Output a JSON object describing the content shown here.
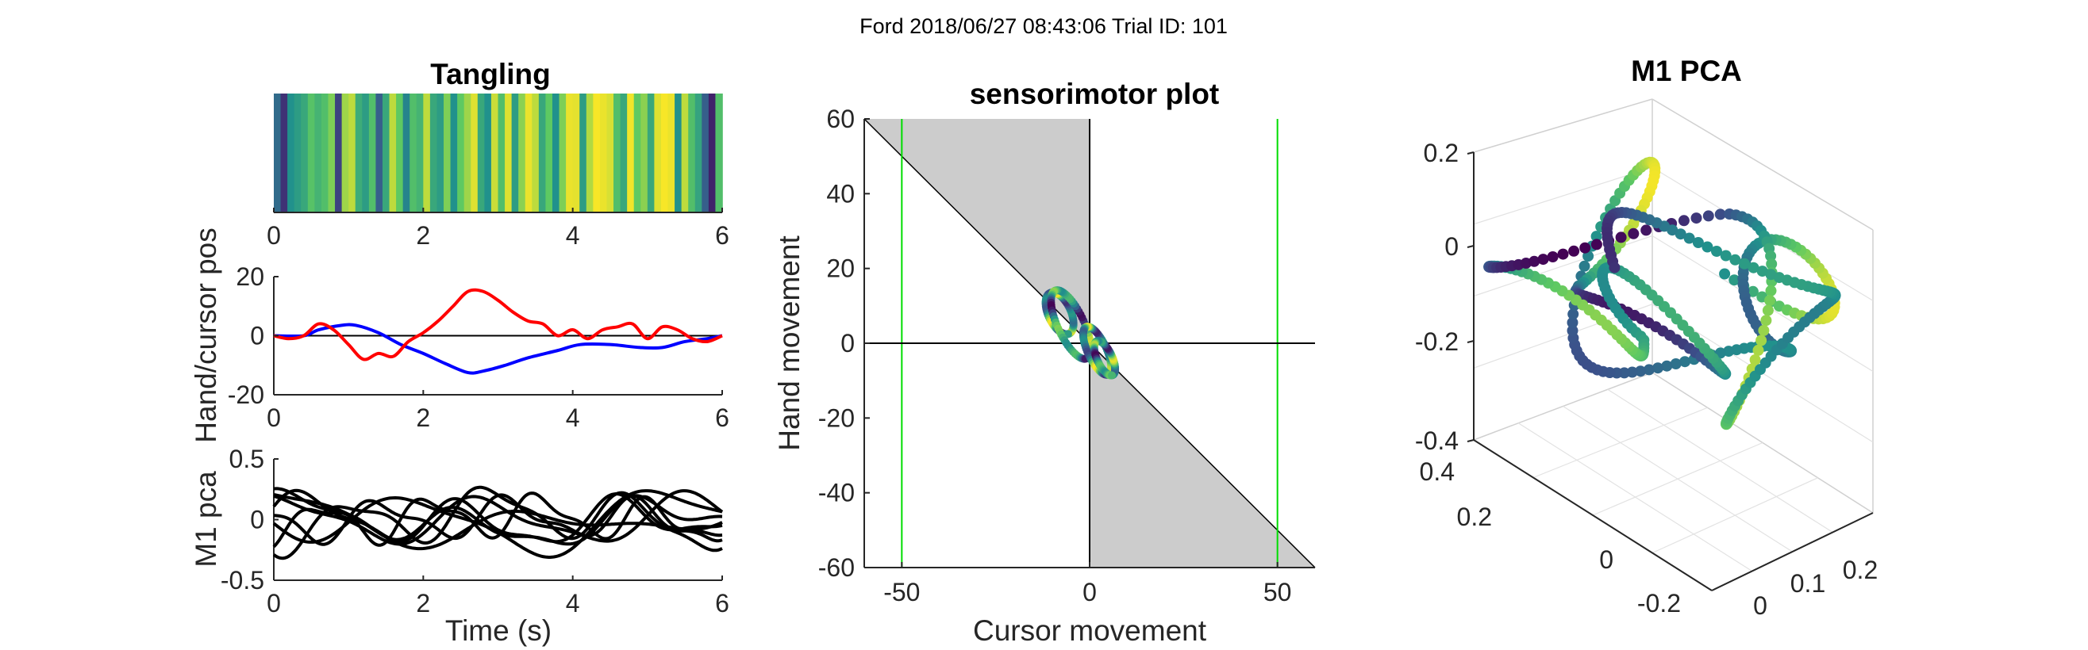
{
  "figure": {
    "suptitle": "Ford 2018/06/27 08:43:06 Trial ID: 101"
  },
  "colors": {
    "hand": "#0000ff",
    "cursor": "#ff0000",
    "pca": "#000000",
    "guide": "#00dd00",
    "shade": "#cccccc",
    "viridis": [
      "#440154",
      "#3b528b",
      "#21918c",
      "#5ec962",
      "#fde725"
    ]
  },
  "chart_data": [
    {
      "type": "heatmap",
      "title": "Tangling",
      "xlim": [
        0,
        6
      ],
      "xticks": [
        "0",
        "2",
        "4",
        "6"
      ],
      "values": [
        0.35,
        0.15,
        0.5,
        0.55,
        0.6,
        0.72,
        0.65,
        0.7,
        0.8,
        0.2,
        0.85,
        0.9,
        0.62,
        0.55,
        0.7,
        0.3,
        0.6,
        0.9,
        0.75,
        0.45,
        0.7,
        0.65,
        0.9,
        0.6,
        0.55,
        0.8,
        0.5,
        0.75,
        0.85,
        0.95,
        0.6,
        0.5,
        0.92,
        0.7,
        0.95,
        0.55,
        0.82,
        0.97,
        0.9,
        0.6,
        0.75,
        0.5,
        0.8,
        0.97,
        0.96,
        0.55,
        0.88,
        0.99,
        0.97,
        0.94,
        0.7,
        0.6,
        0.98,
        0.75,
        0.82,
        0.6,
        0.95,
        0.99,
        0.97,
        0.5,
        0.9,
        0.7,
        0.58,
        0.3,
        0.1,
        0.7
      ]
    },
    {
      "type": "line",
      "ylabel": "Hand/cursor pos",
      "xlim": [
        0,
        6
      ],
      "ylim": [
        -20,
        20
      ],
      "xticks": [
        "0",
        "2",
        "4",
        "6"
      ],
      "yticks": [
        "20",
        "0",
        "-20"
      ],
      "series": [
        {
          "color": "#0000ff",
          "x": [
            0,
            0.4,
            0.6,
            0.9,
            1.1,
            1.4,
            1.7,
            2.0,
            2.3,
            2.6,
            2.8,
            3.1,
            3.4,
            3.8,
            4.1,
            4.5,
            4.9,
            5.2,
            5.5,
            5.8,
            6.0
          ],
          "y": [
            0,
            0,
            2,
            3.5,
            3.5,
            1,
            -3,
            -6,
            -9.5,
            -12.5,
            -12,
            -10,
            -7.5,
            -5,
            -3,
            -3,
            -4,
            -4,
            -2,
            -1,
            0
          ]
        },
        {
          "color": "#ff0000",
          "x": [
            0,
            0.2,
            0.4,
            0.6,
            0.8,
            1.0,
            1.2,
            1.4,
            1.6,
            1.8,
            2.0,
            2.2,
            2.4,
            2.6,
            2.8,
            3.0,
            3.2,
            3.4,
            3.6,
            3.8,
            4.0,
            4.2,
            4.4,
            4.6,
            4.8,
            5.0,
            5.2,
            5.4,
            5.6,
            5.8,
            6.0
          ],
          "y": [
            0,
            -1,
            0,
            4,
            2,
            -3,
            -8,
            -6,
            -7,
            -2,
            1,
            5,
            10,
            15,
            15,
            12,
            8,
            5,
            4,
            0,
            2,
            -1,
            2,
            3,
            4,
            -1,
            3,
            2,
            -1,
            -2,
            0
          ]
        }
      ]
    },
    {
      "type": "line",
      "ylabel": "M1 pca",
      "xlabel": "Time (s)",
      "xlim": [
        0,
        6
      ],
      "ylim": [
        -0.5,
        0.5
      ],
      "xticks": [
        "0",
        "2",
        "4",
        "6"
      ],
      "yticks": [
        "0.5",
        "0",
        "-0.5"
      ],
      "series": [
        {
          "amp": 0.16,
          "freq": 1.45,
          "phase": 0.2,
          "offset": 0.05
        },
        {
          "amp": 0.17,
          "freq": 1.1,
          "phase": 1.3,
          "offset": 0.02
        },
        {
          "amp": 0.14,
          "freq": 1.75,
          "phase": 2.6,
          "offset": -0.02
        },
        {
          "amp": 0.2,
          "freq": 0.95,
          "phase": 3.9,
          "offset": 0.08
        },
        {
          "amp": 0.15,
          "freq": 2.05,
          "phase": 5.1,
          "offset": -0.04
        },
        {
          "amp": 0.13,
          "freq": 1.3,
          "phase": 0.9,
          "offset": 0.1
        },
        {
          "amp": 0.18,
          "freq": 1.6,
          "phase": 4.4,
          "offset": -0.08
        },
        {
          "amp": 0.16,
          "freq": 0.8,
          "phase": 2.0,
          "offset": 0.12
        }
      ]
    },
    {
      "type": "scatter",
      "title": "sensorimotor plot",
      "xlabel": "Cursor movement",
      "ylabel": "Hand movement",
      "xlim": [
        -60,
        60
      ],
      "ylim": [
        -60,
        60
      ],
      "xticks": [
        "-50",
        "0",
        "50"
      ],
      "yticks": [
        "60",
        "40",
        "20",
        "0",
        "-20",
        "-40",
        "-60"
      ],
      "vlines": [
        -50,
        50
      ],
      "loops": [
        {
          "cx": -8,
          "cy": 8,
          "a": 6,
          "b": 3
        },
        {
          "cx": -5,
          "cy": 5,
          "a": 10,
          "b": 3.5
        },
        {
          "cx": 2,
          "cy": -2,
          "a": 7,
          "b": 2.5
        },
        {
          "cx": 4,
          "cy": -4,
          "a": 5,
          "b": 2
        }
      ]
    },
    {
      "type": "scatter",
      "title": "M1 PCA",
      "zticks": [
        "0.2",
        "0",
        "-0.2",
        "-0.4"
      ],
      "yticks": [
        "0.4",
        "0.2",
        "0",
        "-0.2"
      ],
      "xticks": [
        "0",
        "0.1",
        "0.2"
      ]
    }
  ]
}
